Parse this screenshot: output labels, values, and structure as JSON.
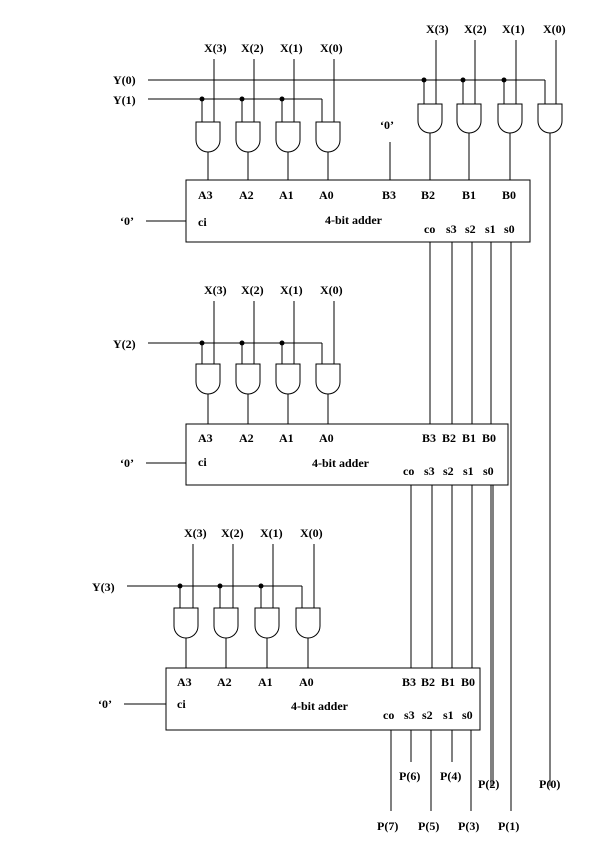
{
  "inputs": {
    "x3": "X(3)",
    "x2": "X(2)",
    "x1": "X(1)",
    "x0": "X(0)",
    "y0": "Y(0)",
    "y1": "Y(1)",
    "y2": "Y(2)",
    "y3": "Y(3)",
    "zero": "‘0’"
  },
  "adder": {
    "title": "4-bit adder",
    "a3": "A3",
    "a2": "A2",
    "a1": "A1",
    "a0": "A0",
    "b3": "B3",
    "b2": "B2",
    "b1": "B1",
    "b0": "B0",
    "ci": "ci",
    "co": "co",
    "s3": "s3",
    "s2": "s2",
    "s1": "s1",
    "s0": "s0"
  },
  "outputs": {
    "p0": "P(0)",
    "p1": "P(1)",
    "p2": "P(2)",
    "p3": "P(3)",
    "p4": "P(4)",
    "p5": "P(5)",
    "p6": "P(6)",
    "p7": "P(7)"
  }
}
